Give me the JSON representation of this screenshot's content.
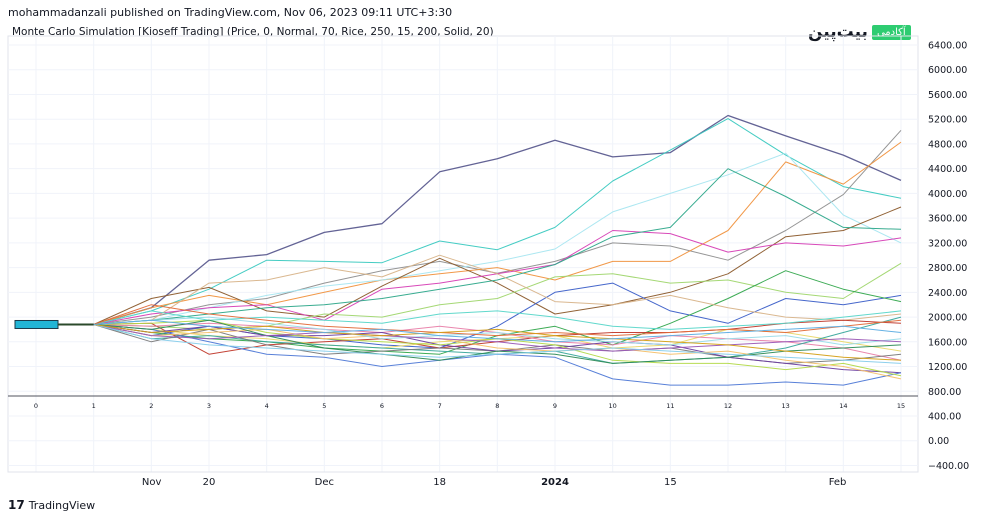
{
  "header": {
    "published_line": "mohammadanzali published on TradingView.com, Nov 06, 2023 09:11 UTC+3:30",
    "indicator_title": "Monte Carlo Simulation [Kioseff Trading] (Price, 0, Normal, 70, Rice, 250, 15, 200, Solid, 20)"
  },
  "brand": {
    "name": "بیت‌پین",
    "badge": "آکادمی"
  },
  "footer": {
    "logo_icon": "tradingview-logo-icon",
    "logo_mark": "17",
    "label": "TradingView"
  },
  "colors": {
    "axis": "#131722",
    "grid": "#f0f3fa",
    "start_bar": "#22b5d6"
  },
  "chart_data": {
    "type": "line",
    "title": "",
    "x": [
      0,
      1,
      2,
      3,
      4,
      5,
      6,
      7,
      8,
      9,
      10,
      11,
      12,
      13,
      14,
      15
    ],
    "ylim": [
      -400,
      6600
    ],
    "y_ticks": [
      "6400.00",
      "6000.00",
      "5600.00",
      "5200.00",
      "4800.00",
      "4400.00",
      "4000.00",
      "3600.00",
      "3200.00",
      "2800.00",
      "2400.00",
      "2000.00",
      "1600.00",
      "1200.00",
      "800.00",
      "400.00",
      "0.00",
      "−400.00"
    ],
    "step_labels": [
      "0",
      "1",
      "2",
      "3",
      "4",
      "5",
      "6",
      "7",
      "8",
      "9",
      "10",
      "11",
      "12",
      "13",
      "14",
      "15"
    ],
    "date_labels": [
      {
        "label": "Nov",
        "step": 1.0,
        "bold": false
      },
      {
        "label": "20",
        "step": 3.0,
        "bold": false
      },
      {
        "label": "Dec",
        "step": 5.0,
        "bold": false
      },
      {
        "label": "18",
        "step": 7.0,
        "bold": false
      },
      {
        "label": "2024",
        "step": 9.0,
        "bold": true
      },
      {
        "label": "15",
        "step": 11.0,
        "bold": false
      },
      {
        "label": "Feb",
        "step": 13.9,
        "bold": false
      }
    ],
    "start_value": 1880,
    "grid": true,
    "series": [
      {
        "color": "#5b5b8f",
        "values": [
          1880,
          1880,
          2150,
          2920,
          3010,
          3370,
          3510,
          4350,
          4560,
          4860,
          4590,
          4660,
          5260,
          4930,
          4620,
          4210
        ]
      },
      {
        "color": "#3bc9c0",
        "values": [
          1880,
          1880,
          2100,
          2450,
          2920,
          2900,
          2880,
          3230,
          3090,
          3450,
          4200,
          4700,
          5210,
          4620,
          4110,
          3920
        ]
      },
      {
        "color": "#8f8f8f",
        "values": [
          1880,
          1880,
          2000,
          2200,
          2300,
          2550,
          2750,
          2900,
          2710,
          2900,
          3200,
          3150,
          2920,
          3400,
          3980,
          5020
        ]
      },
      {
        "color": "#f0923e",
        "values": [
          1880,
          1880,
          2150,
          2350,
          2200,
          2400,
          2600,
          2700,
          2800,
          2600,
          2900,
          2900,
          3400,
          4510,
          4150,
          4830
        ]
      },
      {
        "color": "#a8e6f0",
        "values": [
          1880,
          1880,
          1950,
          2150,
          2350,
          2500,
          2600,
          2750,
          2900,
          3100,
          3700,
          4000,
          4300,
          4650,
          3650,
          3200
        ]
      },
      {
        "color": "#8b5a2b",
        "values": [
          1880,
          1880,
          2300,
          2480,
          2100,
          2000,
          2500,
          2950,
          2550,
          2050,
          2200,
          2400,
          2700,
          3300,
          3400,
          3780
        ]
      },
      {
        "color": "#d63fb5",
        "values": [
          1880,
          1880,
          2050,
          2150,
          2200,
          1950,
          2450,
          2550,
          2700,
          2850,
          3400,
          3350,
          3050,
          3200,
          3150,
          3280
        ]
      },
      {
        "color": "#2ea88a",
        "values": [
          1880,
          1880,
          1950,
          2050,
          2150,
          2200,
          2300,
          2450,
          2600,
          2850,
          3300,
          3450,
          4400,
          3950,
          3450,
          3420
        ]
      },
      {
        "color": "#a0d66e",
        "values": [
          1880,
          1880,
          1850,
          1800,
          1850,
          2050,
          2000,
          2200,
          2300,
          2650,
          2700,
          2550,
          2600,
          2400,
          2300,
          2870
        ]
      },
      {
        "color": "#3c5fc8",
        "values": [
          1880,
          1880,
          1700,
          1850,
          1700,
          1650,
          1550,
          1500,
          1850,
          2400,
          2550,
          2100,
          1900,
          2300,
          2200,
          2350
        ]
      },
      {
        "color": "#33a64c",
        "values": [
          1880,
          1880,
          1750,
          1650,
          1600,
          1500,
          1450,
          1400,
          1700,
          1850,
          1550,
          1900,
          2300,
          2750,
          2450,
          2250
        ]
      },
      {
        "color": "#d8b48a",
        "values": [
          1880,
          1880,
          1950,
          2550,
          2600,
          2800,
          2650,
          3000,
          2700,
          2250,
          2200,
          2350,
          2150,
          2000,
          1950,
          2050
        ]
      },
      {
        "color": "#c0392b",
        "values": [
          1880,
          1880,
          1900,
          1400,
          1550,
          1600,
          1650,
          1500,
          1600,
          1700,
          1750,
          1750,
          1800,
          1900,
          1950,
          1900
        ]
      },
      {
        "color": "#e8d76a",
        "values": [
          1880,
          1880,
          1800,
          1700,
          1650,
          1550,
          1500,
          1600,
          1650,
          1700,
          1500,
          1550,
          1800,
          1750,
          1600,
          1450
        ]
      },
      {
        "color": "#e87fa9",
        "values": [
          1880,
          1880,
          1850,
          1900,
          1850,
          1800,
          1750,
          1850,
          1750,
          1600,
          1550,
          1700,
          1650,
          1600,
          1500,
          1300
        ]
      },
      {
        "color": "#3aa89c",
        "values": [
          1880,
          1880,
          1650,
          1700,
          1600,
          1550,
          1500,
          1450,
          1400,
          1450,
          1250,
          1300,
          1350,
          1500,
          1750,
          2000
        ]
      },
      {
        "color": "#7a7a7a",
        "values": [
          1880,
          1880,
          1600,
          1800,
          1550,
          1400,
          1450,
          1500,
          1450,
          1550,
          1450,
          1500,
          1350,
          1250,
          1300,
          1400
        ]
      },
      {
        "color": "#6b3fa0",
        "values": [
          1880,
          1880,
          1750,
          1850,
          1700,
          1700,
          1750,
          1550,
          1450,
          1500,
          1600,
          1550,
          1350,
          1250,
          1150,
          1100
        ]
      },
      {
        "color": "#4f79d6",
        "values": [
          1880,
          1880,
          1800,
          1600,
          1400,
          1350,
          1200,
          1300,
          1400,
          1350,
          1000,
          900,
          900,
          950,
          900,
          1100
        ]
      },
      {
        "color": "#b3d94a",
        "values": [
          1880,
          1880,
          1900,
          1950,
          1750,
          1650,
          1600,
          1550,
          1650,
          1550,
          1300,
          1250,
          1250,
          1150,
          1250,
          1050
        ]
      },
      {
        "color": "#f4c06a",
        "values": [
          1880,
          1880,
          1700,
          1750,
          1800,
          1650,
          1700,
          1650,
          1500,
          1450,
          1500,
          1400,
          1450,
          1300,
          1200,
          1000
        ]
      },
      {
        "color": "#9adbe8",
        "values": [
          1880,
          1880,
          1950,
          2000,
          1900,
          1800,
          1650,
          1700,
          1750,
          1650,
          1600,
          1550,
          1650,
          1700,
          1550,
          1650
        ]
      },
      {
        "color": "#59d6c9",
        "values": [
          1880,
          1880,
          2100,
          1950,
          2000,
          1950,
          1900,
          2050,
          2100,
          2000,
          1850,
          1800,
          1850,
          1900,
          2000,
          2100
        ]
      },
      {
        "color": "#e26b3a",
        "values": [
          1880,
          1880,
          2200,
          2050,
          1950,
          1850,
          1800,
          1750,
          1700,
          1750,
          1700,
          1750,
          1800,
          1750,
          1850,
          1950
        ]
      },
      {
        "color": "#2e8b57",
        "values": [
          1880,
          1880,
          1800,
          1950,
          1700,
          1500,
          1400,
          1300,
          1450,
          1400,
          1250,
          1300,
          1350,
          1450,
          1500,
          1550
        ]
      },
      {
        "color": "#9b59b6",
        "values": [
          1880,
          1880,
          1700,
          1650,
          1700,
          1750,
          1700,
          1650,
          1600,
          1500,
          1450,
          1500,
          1550,
          1600,
          1650,
          1600
        ]
      },
      {
        "color": "#87ceeb",
        "values": [
          1880,
          1880,
          1650,
          1550,
          1500,
          1450,
          1400,
          1350,
          1400,
          1450,
          1500,
          1450,
          1400,
          1350,
          1300,
          1250
        ]
      },
      {
        "color": "#d4a017",
        "values": [
          1880,
          1880,
          1750,
          1800,
          1850,
          1750,
          1700,
          1750,
          1800,
          1700,
          1650,
          1600,
          1550,
          1450,
          1350,
          1300
        ]
      },
      {
        "color": "#5dade2",
        "values": [
          1880,
          1880,
          1950,
          1850,
          1800,
          1750,
          1800,
          1700,
          1650,
          1600,
          1650,
          1700,
          1750,
          1800,
          1850,
          1750
        ]
      }
    ]
  }
}
